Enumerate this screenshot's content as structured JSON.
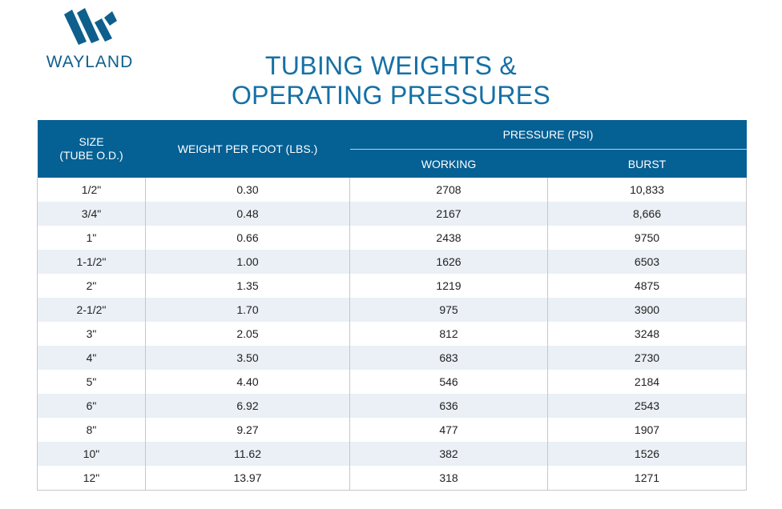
{
  "logo": {
    "text": "WAYLAND",
    "color": "#0e5f8c"
  },
  "title": {
    "line1": "TUBING WEIGHTS &",
    "line2": "OPERATING PRESSURES"
  },
  "table": {
    "header_color": "#056094",
    "stripe_color": "#eaf0f5",
    "headers": {
      "size_line1": "SIZE",
      "size_line2": "(TUBE O.D.)",
      "weight": "WEIGHT PER FOOT (LBS.)",
      "pressure": "PRESSURE (PSI)",
      "working": "WORKING",
      "burst": "BURST"
    },
    "rows": [
      {
        "size": "1/2\"",
        "weight": "0.30",
        "working": "2708",
        "burst": "10,833"
      },
      {
        "size": "3/4\"",
        "weight": "0.48",
        "working": "2167",
        "burst": "8,666"
      },
      {
        "size": "1\"",
        "weight": "0.66",
        "working": "2438",
        "burst": "9750"
      },
      {
        "size": "1-1/2\"",
        "weight": "1.00",
        "working": "1626",
        "burst": "6503"
      },
      {
        "size": "2\"",
        "weight": "1.35",
        "working": "1219",
        "burst": "4875"
      },
      {
        "size": "2-1/2\"",
        "weight": "1.70",
        "working": "975",
        "burst": "3900"
      },
      {
        "size": "3\"",
        "weight": "2.05",
        "working": "812",
        "burst": "3248"
      },
      {
        "size": "4\"",
        "weight": "3.50",
        "working": "683",
        "burst": "2730"
      },
      {
        "size": "5\"",
        "weight": "4.40",
        "working": "546",
        "burst": "2184"
      },
      {
        "size": "6\"",
        "weight": "6.92",
        "working": "636",
        "burst": "2543"
      },
      {
        "size": "8\"",
        "weight": "9.27",
        "working": "477",
        "burst": "1907"
      },
      {
        "size": "10\"",
        "weight": "11.62",
        "working": "382",
        "burst": "1526"
      },
      {
        "size": "12\"",
        "weight": "13.97",
        "working": "318",
        "burst": "1271"
      }
    ]
  }
}
